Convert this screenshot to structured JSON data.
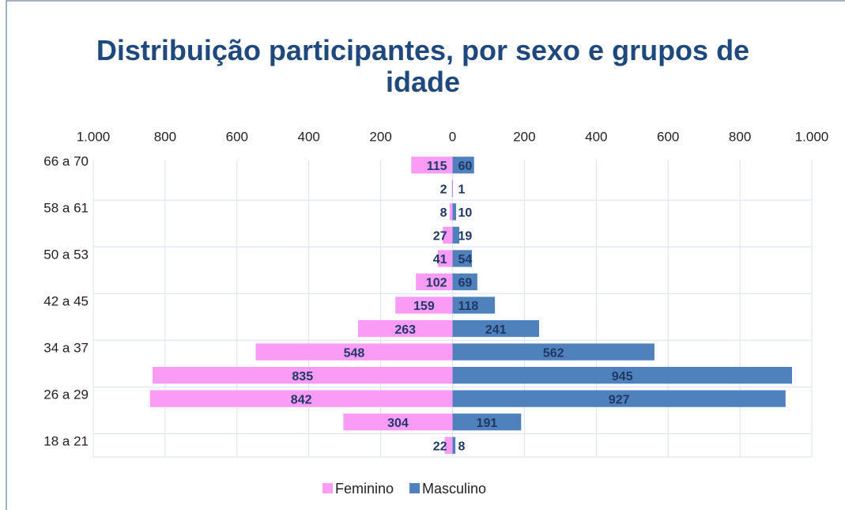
{
  "chart_data": {
    "type": "pyramid",
    "title": "Distribuição participantes, por sexo e grupos de idade",
    "categories": [
      "18 a 21",
      null,
      "26 a 29",
      null,
      "34 a 37",
      null,
      "42 a 45",
      null,
      "50 a 53",
      null,
      "58 a 61",
      null,
      "66 a 70"
    ],
    "series": [
      {
        "name": "Feminino",
        "color": "#fa9cf5",
        "values": [
          -22,
          -304,
          -842,
          -835,
          -548,
          -263,
          -159,
          -102,
          -41,
          -27,
          -8,
          -2,
          -115
        ],
        "value_labels": [
          "22",
          "304",
          "842",
          "835",
          "548",
          "263",
          "159",
          "102",
          "41",
          "27",
          "8",
          "2",
          "115"
        ]
      },
      {
        "name": "Masculino",
        "color": "#4f81bd",
        "values": [
          8,
          191,
          927,
          945,
          562,
          241,
          118,
          69,
          54,
          19,
          10,
          1,
          60
        ]
      }
    ],
    "xlim": [
      -1000,
      1000
    ],
    "xticks": [
      {
        "value": -1000,
        "label": "1.000"
      },
      {
        "value": -800,
        "label": "800"
      },
      {
        "value": -600,
        "label": "600"
      },
      {
        "value": -400,
        "label": "400"
      },
      {
        "value": -200,
        "label": "200"
      },
      0,
      200,
      400,
      600,
      800,
      {
        "value": 1000,
        "label": "1.000"
      }
    ],
    "grid": true,
    "legend": "bottom"
  }
}
